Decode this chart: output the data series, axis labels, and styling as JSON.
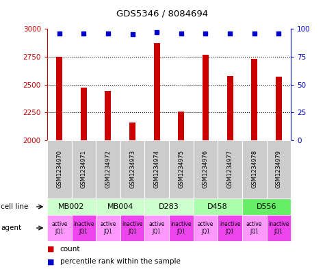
{
  "title": "GDS5346 / 8084694",
  "samples": [
    "GSM1234970",
    "GSM1234971",
    "GSM1234972",
    "GSM1234973",
    "GSM1234974",
    "GSM1234975",
    "GSM1234976",
    "GSM1234977",
    "GSM1234978",
    "GSM1234979"
  ],
  "counts": [
    2750,
    2470,
    2440,
    2160,
    2870,
    2260,
    2770,
    2580,
    2730,
    2570
  ],
  "percentiles": [
    96,
    96,
    96,
    95,
    97,
    96,
    96,
    96,
    96,
    96
  ],
  "ylim_left": [
    2000,
    3000
  ],
  "ylim_right": [
    0,
    100
  ],
  "yticks_left": [
    2000,
    2250,
    2500,
    2750,
    3000
  ],
  "yticks_right": [
    0,
    25,
    50,
    75,
    100
  ],
  "bar_color": "#cc0000",
  "dot_color": "#0000cc",
  "bar_width": 0.25,
  "cell_lines": [
    {
      "label": "MB002",
      "start": 0,
      "end": 2,
      "color": "#ccffcc"
    },
    {
      "label": "MB004",
      "start": 2,
      "end": 4,
      "color": "#ccffcc"
    },
    {
      "label": "D283",
      "start": 4,
      "end": 6,
      "color": "#ccffcc"
    },
    {
      "label": "D458",
      "start": 6,
      "end": 8,
      "color": "#aaffaa"
    },
    {
      "label": "D556",
      "start": 8,
      "end": 10,
      "color": "#66ee66"
    }
  ],
  "agents": [
    {
      "label": "active\nJQ1",
      "color": "#ff99ff"
    },
    {
      "label": "inactive\nJQ1",
      "color": "#ee44ee"
    },
    {
      "label": "active\nJQ1",
      "color": "#ff99ff"
    },
    {
      "label": "inactive\nJQ1",
      "color": "#ee44ee"
    },
    {
      "label": "active\nJQ1",
      "color": "#ff99ff"
    },
    {
      "label": "inactive\nJQ1",
      "color": "#ee44ee"
    },
    {
      "label": "active\nJQ1",
      "color": "#ff99ff"
    },
    {
      "label": "inactive\nJQ1",
      "color": "#ee44ee"
    },
    {
      "label": "active\nJQ1",
      "color": "#ff99ff"
    },
    {
      "label": "inactive\nJQ1",
      "color": "#ee44ee"
    }
  ],
  "tick_label_color_left": "#cc0000",
  "tick_label_color_right": "#0000cc",
  "bg_color": "#ffffff",
  "grid_color": "#000000",
  "sample_bg_color": "#cccccc"
}
